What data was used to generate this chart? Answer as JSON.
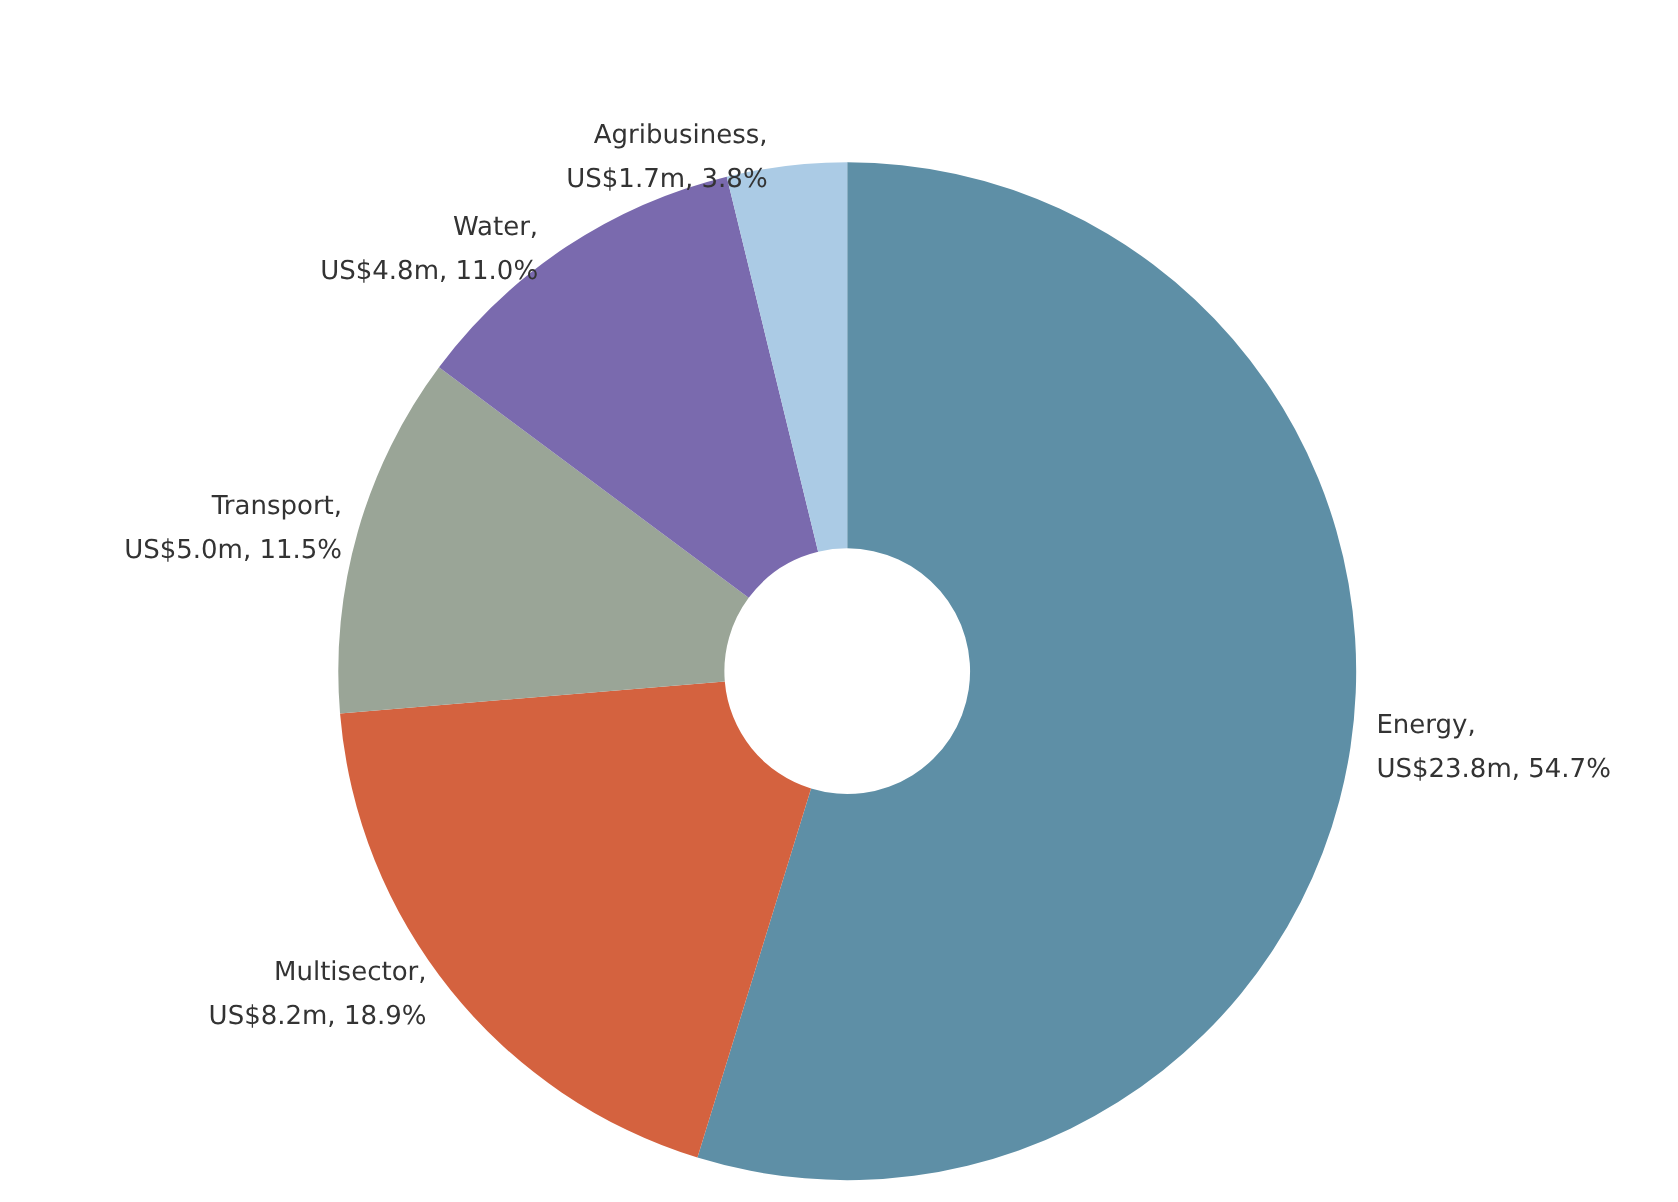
{
  "chart_data": {
    "type": "donut",
    "categories": [
      "Energy",
      "Multisector",
      "Transport",
      "Water",
      "Agribusiness"
    ],
    "values": [
      54.7,
      18.9,
      11.5,
      11.0,
      3.8
    ],
    "value_labels": [
      ",\nUS$23.8m, 54.7%",
      ",\nUS$8.2m, 18.9%",
      ",\nUS$5.0m, 11.5%",
      ",\nUS$4.8m, 11.0%",
      ",\nUS$1.7m, 3.8%"
    ],
    "colors": [
      "#5e8fa6",
      "#d4623f",
      "#9aa597",
      "#7a6aae",
      "#abcbe5"
    ],
    "legend": false
  }
}
